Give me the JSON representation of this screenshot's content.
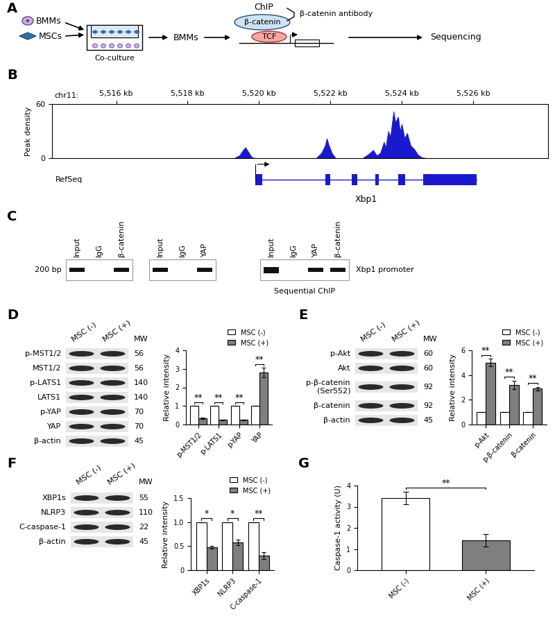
{
  "panel_labels": [
    "A",
    "B",
    "C",
    "D",
    "E",
    "F",
    "G"
  ],
  "schematic": {
    "cells": [
      "BMMs",
      "MSCs"
    ],
    "co_culture": "Co-culture",
    "product": "BMMs",
    "method": "ChIP",
    "protein": "β-catenin",
    "partner": "TCF",
    "antibody": "β-catenin antibody",
    "output": "Sequencing"
  },
  "gels": {
    "size_label": "200 bp",
    "target": "Xbp1 promoter",
    "caption": "Sequential ChIP",
    "panels": [
      {
        "lanes": [
          "Input",
          "IgG",
          "β-catenin"
        ],
        "bands": [
          true,
          false,
          true
        ]
      },
      {
        "lanes": [
          "Input",
          "IgG",
          "YAP"
        ],
        "bands": [
          true,
          false,
          true
        ]
      },
      {
        "lanes": [
          "Input",
          "IgG",
          "YAP",
          "β-catenin"
        ],
        "bands": [
          true,
          false,
          true,
          true
        ]
      }
    ]
  },
  "blots": {
    "conditions": [
      "MSC (-)",
      "MSC (+)"
    ],
    "mw_header": "MW",
    "panels": [
      {
        "rows": [
          "p-MST1/2",
          "MST1/2",
          "p-LATS1",
          "LATS1",
          "p-YAP",
          "YAP",
          "β-actin"
        ],
        "mw": [
          56,
          56,
          140,
          140,
          70,
          70,
          45
        ]
      },
      {
        "rows": [
          "p-Akt",
          "Akt",
          "p-β-catenin\n(Ser552)",
          "β-catenin",
          "β-actin"
        ],
        "mw": [
          60,
          60,
          92,
          92,
          45
        ]
      },
      {
        "rows": [
          "XBP1s",
          "NLRP3",
          "C-caspase-1",
          "β-actin"
        ],
        "mw": [
          55,
          110,
          22,
          45
        ]
      }
    ]
  },
  "chart_data": [
    {
      "type": "area",
      "xlabel": "chr11:",
      "ylabel": "Peak density",
      "color": "#1a1acc",
      "x": [
        5514.2,
        5519.3,
        5519.45,
        5519.55,
        5519.62,
        5519.7,
        5519.8,
        5519.9,
        5521.6,
        5521.75,
        5521.85,
        5521.9,
        5521.95,
        5522.05,
        5522.15,
        5522.9,
        5523.05,
        5523.2,
        5523.3,
        5523.4,
        5523.5,
        5523.55,
        5523.62,
        5523.68,
        5523.77,
        5523.82,
        5523.9,
        5523.95,
        5524.0,
        5524.08,
        5524.15,
        5524.25,
        5524.35,
        5524.45,
        5524.55,
        5524.7,
        5528.1
      ],
      "values": [
        0,
        0,
        3,
        9,
        12,
        7,
        1,
        0,
        0,
        6,
        14,
        22,
        15,
        5,
        0,
        0,
        4,
        9,
        3,
        6,
        18,
        12,
        30,
        24,
        52,
        40,
        46,
        30,
        38,
        22,
        28,
        14,
        10,
        4,
        1,
        0,
        0
      ],
      "xlim": [
        5514.2,
        5528.1
      ],
      "xticks": [
        {
          "value": 5516,
          "label": "5,516 kb"
        },
        {
          "value": 5518,
          "label": "5,518 kb"
        },
        {
          "value": 5520,
          "label": "5,520 kb"
        },
        {
          "value": 5522,
          "label": "5,522 kb"
        },
        {
          "value": 5524,
          "label": "5,524 kb"
        },
        {
          "value": 5526,
          "label": "5,526 kb"
        }
      ],
      "ylim": [
        0,
        60
      ],
      "yticks": [
        0,
        60
      ],
      "track_label": "RefSeq",
      "gene": {
        "name": "Xbp1",
        "start": 5519.9,
        "end": 5526.1,
        "exons": [
          [
            5519.9,
            5520.1
          ],
          [
            5521.85,
            5522.0
          ],
          [
            5522.6,
            5522.75
          ],
          [
            5523.25,
            5523.35
          ],
          [
            5523.9,
            5524.1
          ],
          [
            5524.6,
            5526.1
          ]
        ]
      }
    },
    {
      "type": "bar",
      "ylabel": "Relative intensity",
      "legend": "top right",
      "categories": [
        "p-MST1/2",
        "p-LATS1",
        "p-YAP",
        "YAP"
      ],
      "series": [
        {
          "name": "MSC (-)",
          "color": "#ffffff",
          "values": [
            1,
            1,
            1,
            1
          ],
          "errors": [
            0,
            0,
            0,
            0
          ]
        },
        {
          "name": "MSC (+)",
          "color": "#7f7f7f",
          "values": [
            0.35,
            0.25,
            0.25,
            2.8
          ],
          "errors": [
            0.04,
            0.03,
            0.03,
            0.25
          ]
        }
      ],
      "significance": [
        "**",
        "**",
        "**",
        "**"
      ],
      "ylim": [
        0,
        4
      ],
      "yticks": [
        0,
        1,
        2,
        3,
        4
      ]
    },
    {
      "type": "bar",
      "ylabel": "Relative intensity",
      "legend": "top right",
      "categories": [
        "p-Akt",
        "p-β-catenin",
        "β-catenin"
      ],
      "series": [
        {
          "name": "MSC (-)",
          "color": "#ffffff",
          "values": [
            1,
            1,
            1
          ],
          "errors": [
            0,
            0,
            0
          ]
        },
        {
          "name": "MSC (+)",
          "color": "#7f7f7f",
          "values": [
            5.0,
            3.2,
            2.9
          ],
          "errors": [
            0.3,
            0.35,
            0.15
          ]
        }
      ],
      "significance": [
        "**",
        "**",
        "**"
      ],
      "ylim": [
        0,
        6
      ],
      "yticks": [
        0,
        2,
        4,
        6
      ]
    },
    {
      "type": "bar",
      "ylabel": "Relative intensity",
      "legend": "top right",
      "categories": [
        "XBP1s",
        "NLRP3",
        "C-caspase-1"
      ],
      "series": [
        {
          "name": "MSC (-)",
          "color": "#ffffff",
          "values": [
            1,
            1,
            1
          ],
          "errors": [
            0,
            0,
            0
          ]
        },
        {
          "name": "MSC (+)",
          "color": "#7f7f7f",
          "values": [
            0.48,
            0.58,
            0.3
          ],
          "errors": [
            0.03,
            0.06,
            0.07
          ]
        }
      ],
      "significance": [
        "*",
        "*",
        "**"
      ],
      "ylim": [
        0,
        1.5
      ],
      "yticks": [
        0,
        0.5,
        {
          "value": 1,
          "label": "1.0"
        },
        1.5
      ]
    },
    {
      "type": "bar",
      "ylabel": "Caspase-1 activity (U)",
      "categories": [
        "MSC (-)",
        "MSC (+)"
      ],
      "colors": [
        "#ffffff",
        "#7f7f7f"
      ],
      "values": [
        3.4,
        1.4
      ],
      "errors": [
        0.3,
        0.3
      ],
      "significance": [
        "**"
      ],
      "ylim": [
        0,
        4
      ],
      "yticks": [
        0,
        1,
        2,
        3,
        4
      ]
    }
  ]
}
